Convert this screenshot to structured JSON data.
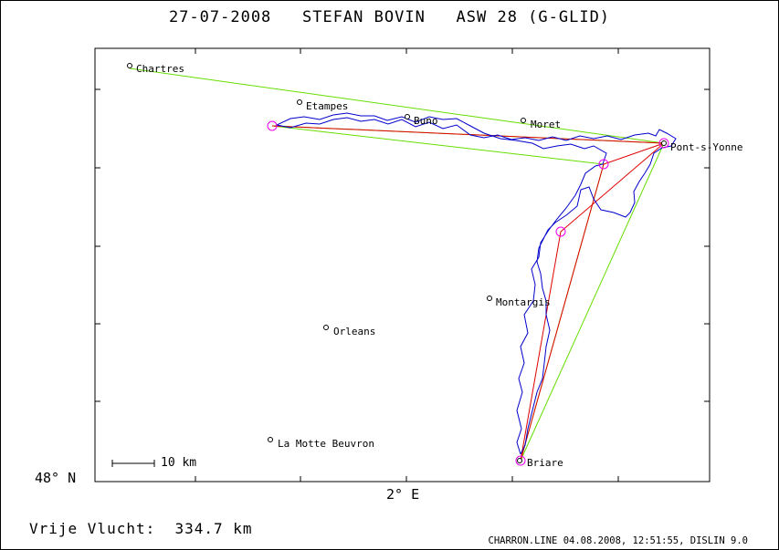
{
  "header": {
    "title": "27-07-2008   STEFAN BOVIN   ASW 28 (G-GLID)"
  },
  "axes": {
    "lat_label": "48° N",
    "lon_label": "2° E"
  },
  "scale_bar": {
    "label": "10 km"
  },
  "footer": {
    "distance_text": "Vrije Vlucht:  334.7 km",
    "credit": "CHARRON.LINE 04.08.2008, 12:51:55, DISLIN 9.0"
  },
  "places": [
    {
      "name": "Chartres"
    },
    {
      "name": "Etampes"
    },
    {
      "name": "Buno"
    },
    {
      "name": "Moret"
    },
    {
      "name": "Pont-s-Yonne"
    },
    {
      "name": "Montargis"
    },
    {
      "name": "Orleans"
    },
    {
      "name": "La Motte Beuvron"
    },
    {
      "name": "Briare"
    }
  ],
  "colors": {
    "track": "#0000cc",
    "task_red": "#e00000",
    "task_green": "#66dd00",
    "turnpoint": "#ee00ee",
    "frame": "#000000"
  }
}
